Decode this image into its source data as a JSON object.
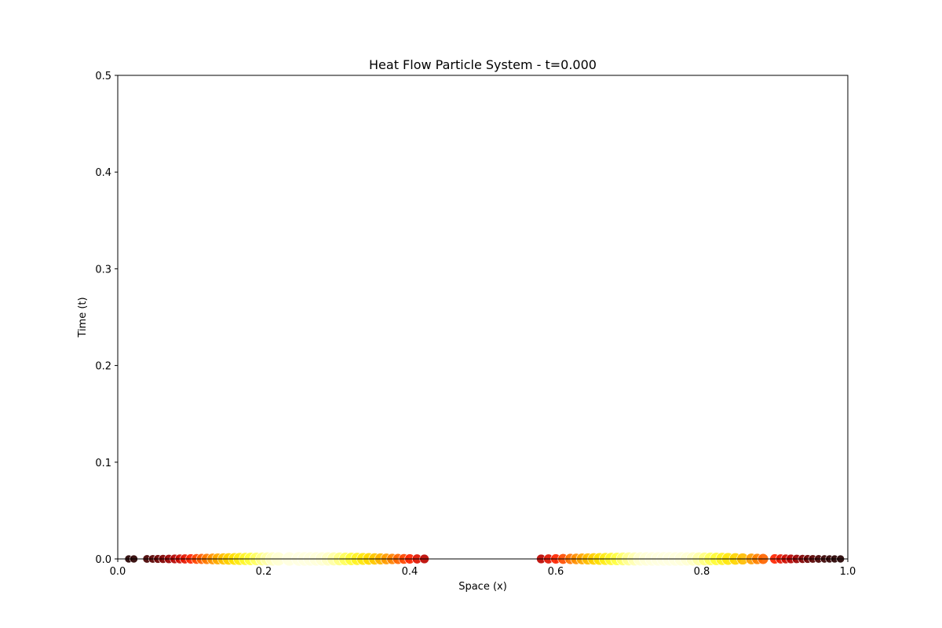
{
  "chart_data": {
    "type": "scatter",
    "title": "Heat Flow Particle System - t=0.000",
    "xlabel": "Space (x)",
    "ylabel": "Time (t)",
    "xlim": [
      0.0,
      1.0
    ],
    "ylim": [
      0.0,
      0.5
    ],
    "xticks": [
      "0.0",
      "0.2",
      "0.4",
      "0.6",
      "0.8",
      "1.0"
    ],
    "yticks": [
      "0.0",
      "0.1",
      "0.2",
      "0.3",
      "0.4",
      "0.5"
    ],
    "grid": false,
    "colormap": "hot",
    "points": {
      "x": [
        0.015,
        0.022,
        0.04,
        0.048,
        0.055,
        0.062,
        0.07,
        0.078,
        0.085,
        0.092,
        0.1,
        0.108,
        0.115,
        0.122,
        0.13,
        0.137,
        0.145,
        0.152,
        0.16,
        0.167,
        0.175,
        0.182,
        0.19,
        0.198,
        0.205,
        0.212,
        0.22,
        0.235,
        0.248,
        0.256,
        0.264,
        0.272,
        0.28,
        0.288,
        0.296,
        0.304,
        0.312,
        0.32,
        0.328,
        0.336,
        0.344,
        0.352,
        0.36,
        0.368,
        0.376,
        0.384,
        0.392,
        0.4,
        0.41,
        0.42,
        0.58,
        0.59,
        0.6,
        0.61,
        0.62,
        0.628,
        0.636,
        0.644,
        0.652,
        0.66,
        0.668,
        0.676,
        0.684,
        0.692,
        0.7,
        0.708,
        0.716,
        0.724,
        0.732,
        0.74,
        0.748,
        0.756,
        0.764,
        0.772,
        0.78,
        0.788,
        0.796,
        0.804,
        0.812,
        0.82,
        0.828,
        0.836,
        0.846,
        0.856,
        0.868,
        0.876,
        0.884,
        0.9,
        0.908,
        0.915,
        0.922,
        0.93,
        0.938,
        0.945,
        0.952,
        0.96,
        0.968,
        0.975,
        0.982,
        0.99
      ],
      "y": [
        0.0,
        0.0,
        0.0,
        0.0,
        0.0,
        0.0,
        0.0,
        0.0,
        0.0,
        0.0,
        0.0,
        0.0,
        0.0,
        0.0,
        0.0,
        0.0,
        0.0,
        0.0,
        0.0,
        0.0,
        0.0,
        0.0,
        0.0,
        0.0,
        0.0,
        0.0,
        0.0,
        0.0,
        0.0,
        0.0,
        0.0,
        0.0,
        0.0,
        0.0,
        0.0,
        0.0,
        0.0,
        0.0,
        0.0,
        0.0,
        0.0,
        0.0,
        0.0,
        0.0,
        0.0,
        0.0,
        0.0,
        0.0,
        0.0,
        0.0,
        0.0,
        0.0,
        0.0,
        0.0,
        0.0,
        0.0,
        0.0,
        0.0,
        0.0,
        0.0,
        0.0,
        0.0,
        0.0,
        0.0,
        0.0,
        0.0,
        0.0,
        0.0,
        0.0,
        0.0,
        0.0,
        0.0,
        0.0,
        0.0,
        0.0,
        0.0,
        0.0,
        0.0,
        0.0,
        0.0,
        0.0,
        0.0,
        0.0,
        0.0,
        0.0,
        0.0,
        0.0,
        0.0,
        0.0,
        0.0,
        0.0,
        0.0,
        0.0,
        0.0,
        0.0,
        0.0,
        0.0,
        0.0,
        0.0,
        0.0
      ]
    },
    "colors": {
      "axes": "#000000",
      "background": "#ffffff",
      "point_edge": "#ffffff",
      "hot_stops": [
        "#0b0000",
        "#5a0000",
        "#b00000",
        "#ff2000",
        "#ff7000",
        "#ffb000",
        "#ffe000",
        "#ffff40",
        "#ffffd0",
        "#ffffff"
      ]
    }
  }
}
